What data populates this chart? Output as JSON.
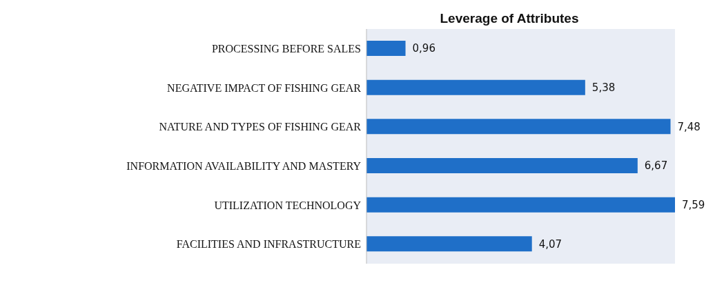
{
  "chart_data": {
    "type": "bar",
    "orientation": "horizontal",
    "title": "Leverage of Attributes",
    "categories": [
      "PROCESSING BEFORE SALES",
      "NEGATIVE IMPACT OF FISHING GEAR",
      "NATURE AND TYPES OF FISHING GEAR",
      "INFORMATION AVAILABILITY AND MASTERY",
      "UTILIZATION TECHNOLOGY",
      "FACILITIES AND INFRASTRUCTURE"
    ],
    "values": [
      0.96,
      5.38,
      7.48,
      6.67,
      7.59,
      4.07
    ],
    "value_labels": [
      "0,96",
      "5,38",
      "7,48",
      "6,67",
      "7,59",
      "4,07"
    ],
    "color": "#1f6fc8"
  }
}
